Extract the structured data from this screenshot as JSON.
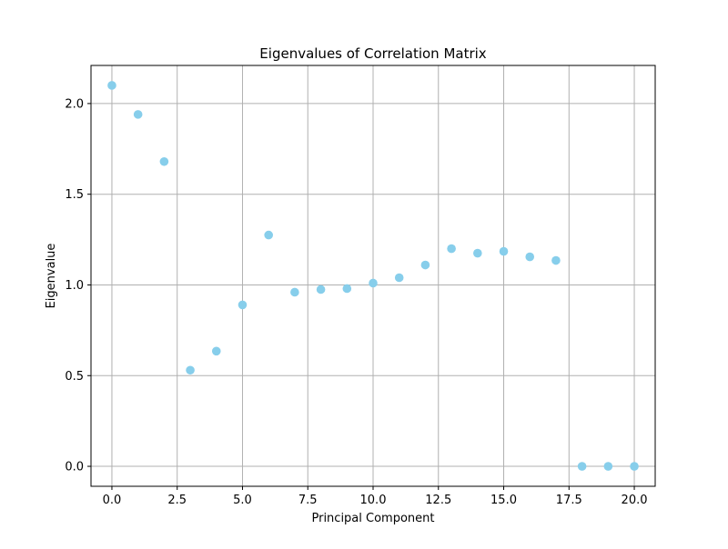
{
  "chart_data": {
    "type": "scatter",
    "title": "Eigenvalues of Correlation Matrix",
    "xlabel": "Principal Component",
    "ylabel": "Eigenvalue",
    "xlim": [
      -0.8,
      20.8
    ],
    "ylim": [
      -0.11,
      2.21
    ],
    "xticks": [
      0.0,
      2.5,
      5.0,
      7.5,
      10.0,
      12.5,
      15.0,
      17.5,
      20.0
    ],
    "xtick_labels": [
      "0.0",
      "2.5",
      "5.0",
      "7.5",
      "10.0",
      "12.5",
      "15.0",
      "17.5",
      "20.0"
    ],
    "yticks": [
      0.0,
      0.5,
      1.0,
      1.5,
      2.0
    ],
    "ytick_labels": [
      "0.0",
      "0.5",
      "1.0",
      "1.5",
      "2.0"
    ],
    "grid": true,
    "point_color": "#87ceeb",
    "grid_color": "#b0b0b0",
    "series": [
      {
        "x": [
          0,
          1,
          2,
          3,
          4,
          5,
          6,
          7,
          8,
          9,
          10,
          11,
          12,
          13,
          14,
          15,
          16,
          17,
          18,
          19,
          20
        ],
        "y": [
          2.1,
          1.94,
          1.68,
          0.53,
          0.635,
          0.89,
          1.275,
          0.96,
          0.975,
          0.98,
          1.01,
          1.04,
          1.11,
          1.2,
          1.175,
          1.185,
          1.155,
          1.135,
          0.0,
          0.0,
          0.0
        ]
      }
    ]
  }
}
